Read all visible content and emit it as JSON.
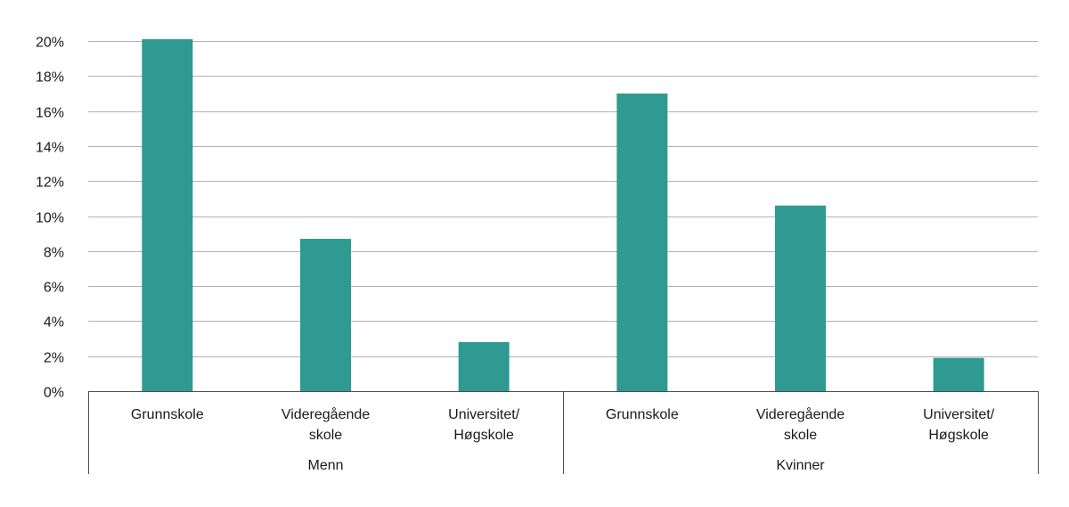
{
  "chart_data": {
    "type": "bar",
    "ylim": [
      0,
      20
    ],
    "yticks": [
      0,
      2,
      4,
      6,
      8,
      10,
      12,
      14,
      16,
      18,
      20
    ],
    "ytick_suffix": "%",
    "grid": true,
    "bar_color": "#2e9a92",
    "groups": [
      {
        "name": "Menn",
        "categories": [
          [
            "Grunnskole"
          ],
          [
            "Videregående",
            "skole"
          ],
          [
            "Universitet/",
            "Høgskole"
          ]
        ],
        "values": [
          20.1,
          8.7,
          2.8
        ]
      },
      {
        "name": "Kvinner",
        "categories": [
          [
            "Grunnskole"
          ],
          [
            "Videregående",
            "skole"
          ],
          [
            "Universitet/",
            "Høgskole"
          ]
        ],
        "values": [
          17.0,
          10.6,
          1.9
        ]
      }
    ]
  }
}
